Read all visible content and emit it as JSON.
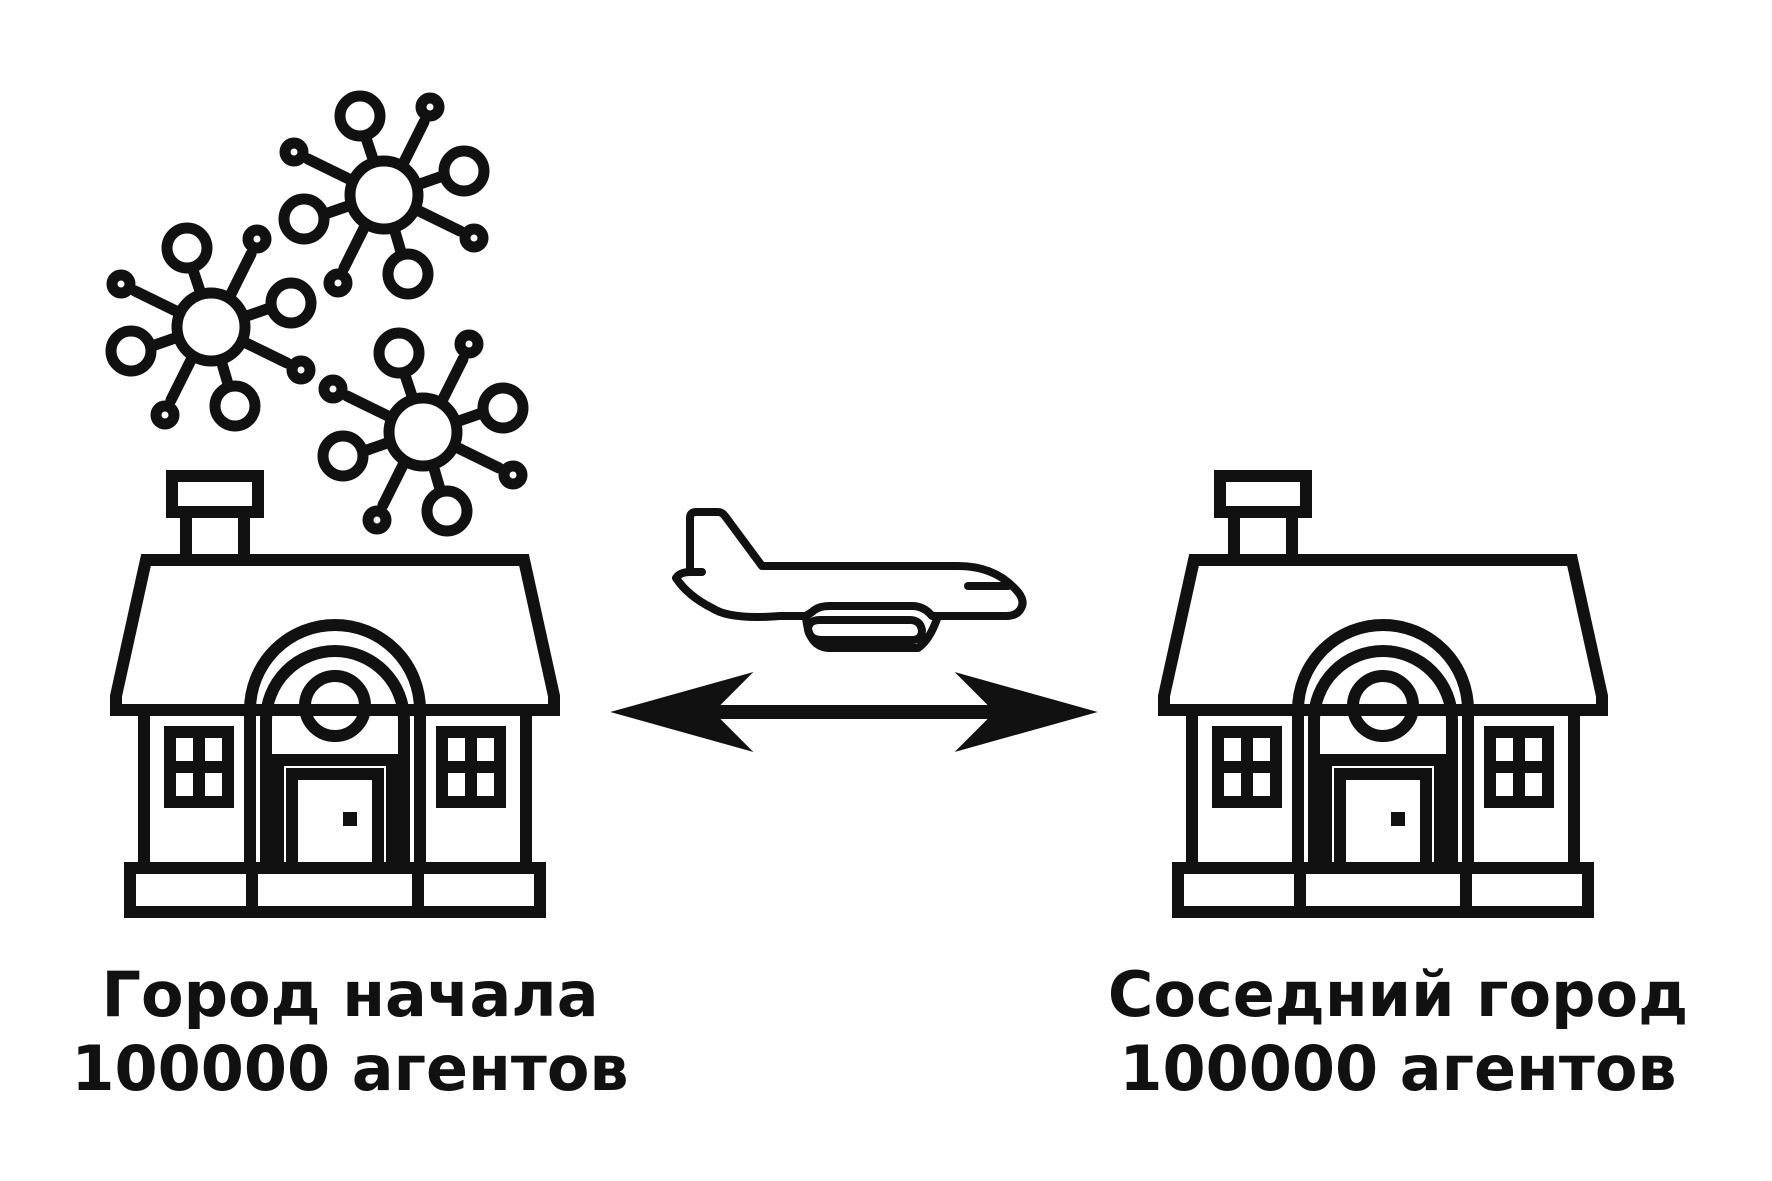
{
  "colors": {
    "stroke": "#111111",
    "background": "#ffffff"
  },
  "icons": {
    "virus_cluster": "virus-icon",
    "airplane": "airplane-icon",
    "connection": "double-arrow-icon",
    "house": "house-icon"
  },
  "left_city": {
    "name": "Город начала",
    "agents": "100000 агентов"
  },
  "right_city": {
    "name": "Соседний город",
    "agents": "100000 агентов"
  }
}
